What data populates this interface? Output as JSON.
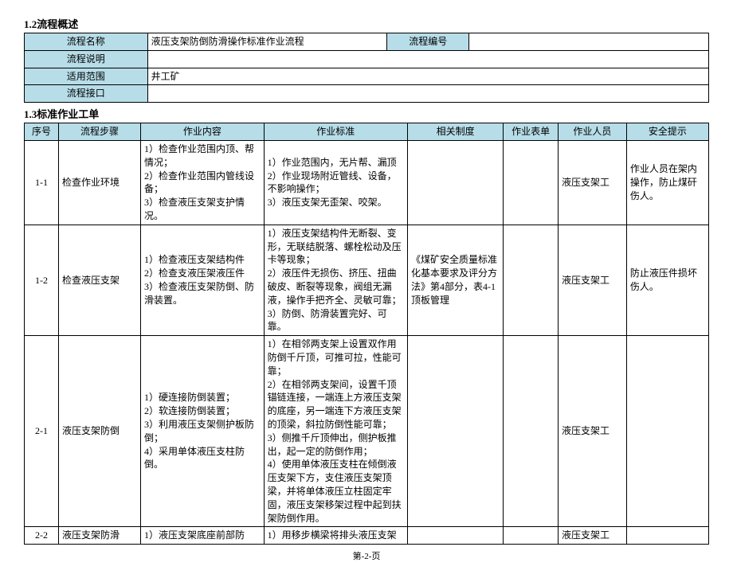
{
  "sec1": {
    "title": "1.2流程概述",
    "rows": {
      "r1_label": "流程名称",
      "r1_val": "液压支架防倒防滑操作标准作业流程",
      "r1_label2": "流程编号",
      "r1_val2": "",
      "r2_label": "流程说明",
      "r2_val": "",
      "r3_label": "适用范围",
      "r3_val": "井工矿",
      "r4_label": "流程接口",
      "r4_val": ""
    }
  },
  "sec2": {
    "title": "1.3标准作业工单",
    "headers": {
      "seq": "序号",
      "step": "流程步骤",
      "content": "作业内容",
      "standard": "作业标准",
      "regs": "相关制度",
      "form": "作业表单",
      "person": "作业人员",
      "safety": "安全提示"
    },
    "rows": [
      {
        "seq": "1-1",
        "step": "检查作业环境",
        "content": "1）检查作业范围内顶、帮情况；\n2）检查作业范围内管线设备；\n3）检查液压支架支护情况。",
        "standard": "1）作业范围内，无片帮、漏顶\n2）作业现场附近管线、设备，不影响操作；\n3）液压支架无歪架、咬架。",
        "regs": "",
        "form": "",
        "person": "液压支架工",
        "safety": "作业人员在架内操作，防止煤矸伤人。"
      },
      {
        "seq": "1-2",
        "step": "检查液压支架",
        "content": "1）检查液压支架结构件\n2）检查支液压架液压件\n3）检查液压支架防倒、防滑装置。",
        "standard": "1）液压支架结构件无断裂、变形，无联结脱落、螺栓松动及压卡等现象；\n2）液压件无损伤、挤压、扭曲破皮、断裂等现象，阀组无漏液，操作手把齐全、灵敏可靠；\n3）防倒、防滑装置完好、可靠。",
        "regs": "《煤矿安全质量标准化基本要求及评分方法》第4部分，表4-1顶板管理",
        "form": "",
        "person": "液压支架工",
        "safety": "防止液压件损坏伤人。"
      },
      {
        "seq": "2-1",
        "step": "液压支架防倒",
        "content": "1）硬连接防倒装置；\n2）软连接防倒装置；\n3）利用液压支架侧护板防倒；\n4）采用单体液压支柱防倒。",
        "standard": "1）在相邻两支架上设置双作用防倒千斤顶，可推可拉，性能可靠；\n2）在相邻两支架间，设置千顶锚链连接，一端连上方液压支架的底座，另一端连下方液压支架的顶梁，斜拉防倒性能可靠；\n3）侧推千斤顶伸出，侧护板推出，起一定的防倒作用；\n4）使用单体液压支柱在倾倒液压支架下方，支住液压支架顶梁，并将单体液压立柱固定牢固，液压支架移架过程中起到扶架防倒作用。",
        "regs": "",
        "form": "",
        "person": "液压支架工",
        "safety": ""
      },
      {
        "seq": "2-2",
        "step": "液压支架防滑",
        "content": "1）液压支架底座前部防",
        "standard": "1）用移步横梁将排头液压支架",
        "regs": "",
        "form": "",
        "person": "液压支架工",
        "safety": ""
      }
    ]
  },
  "footer": "第-2-页"
}
